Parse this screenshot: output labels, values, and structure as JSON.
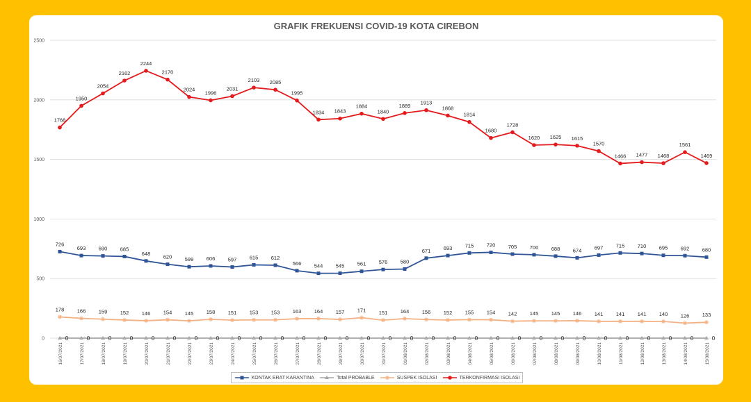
{
  "chart_data": {
    "type": "line",
    "title": "GRAFIK FREKUENSI COVID-19 KOTA CIREBON",
    "xlabel": "",
    "ylabel": "",
    "ylim": [
      0,
      2500
    ],
    "yticks": [
      "0",
      "500",
      "1000",
      "1500",
      "2000",
      "2500"
    ],
    "grid": true,
    "legend_position": "bottom",
    "categories": [
      "16/07/2021",
      "17/07/2021",
      "18/07/2021",
      "19/07/2021",
      "20/07/2021",
      "21/07/2021",
      "22/07/2021",
      "23/07/2021",
      "24/07/2021",
      "25/07/2021",
      "26/07/2021",
      "27/07/2021",
      "28/07/2021",
      "29/07/2021",
      "30/07/2021",
      "31/07/2021",
      "01/08/2021",
      "02/08/2021",
      "03/08/2021",
      "04/08/2021",
      "05/08/2021",
      "06/08/2021",
      "07/08/2021",
      "08/08/2021",
      "09/08/2021",
      "10/08/2021",
      "11/08/2021",
      "12/08/2021",
      "13/08/2021",
      "14/08/2021",
      "15/08/2021"
    ],
    "series": [
      {
        "name": "KONTAK ERAT KARANTINA",
        "color": "#2F5597",
        "marker": "square",
        "values": [
          726,
          693,
          690,
          685,
          648,
          620,
          599,
          606,
          597,
          615,
          612,
          566,
          544,
          545,
          561,
          576,
          580,
          671,
          693,
          715,
          720,
          705,
          700,
          688,
          674,
          697,
          715,
          710,
          695,
          692,
          680
        ]
      },
      {
        "name": "Total PROBABLE",
        "color": "#A5A5A5",
        "marker": "triangle",
        "values": [
          0,
          0,
          0,
          0,
          0,
          0,
          0,
          0,
          0,
          0,
          0,
          0,
          0,
          0,
          0,
          0,
          0,
          0,
          0,
          0,
          0,
          0,
          0,
          0,
          0,
          0,
          0,
          0,
          0,
          0,
          0
        ]
      },
      {
        "name": "SUSPEK ISOLASI",
        "color": "#F4B183",
        "marker": "star",
        "values": [
          178,
          166,
          159,
          152,
          146,
          154,
          145,
          158,
          151,
          153,
          153,
          163,
          164,
          157,
          171,
          151,
          164,
          156,
          152,
          155,
          154,
          142,
          145,
          145,
          146,
          141,
          141,
          141,
          140,
          126,
          133
        ]
      },
      {
        "name": "TERKONFIRMASI ISOLASI",
        "color": "#E41A1C",
        "marker": "circle",
        "values": [
          1768,
          1950,
          2054,
          2162,
          2244,
          2170,
          2024,
          1996,
          2031,
          2103,
          2085,
          1995,
          1834,
          1843,
          1884,
          1840,
          1889,
          1913,
          1868,
          1814,
          1680,
          1728,
          1620,
          1625,
          1615,
          1570,
          1466,
          1477,
          1468,
          1561,
          1469
        ]
      }
    ]
  }
}
